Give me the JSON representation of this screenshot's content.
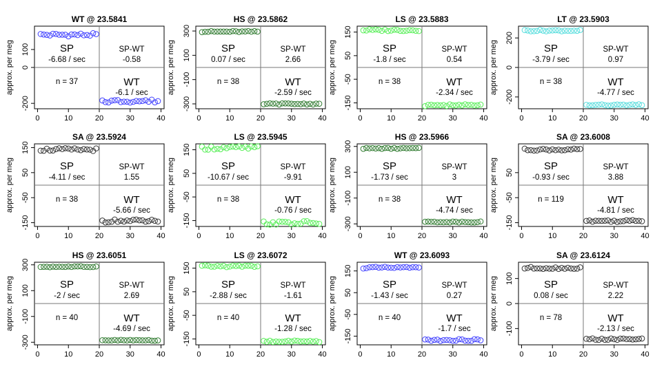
{
  "chart_data": [
    {
      "type": "scatter",
      "title": "WT @ 23.5841",
      "ylabel": "approx. per meg",
      "ylim": [
        -230,
        230
      ],
      "yticks": [
        -200,
        0,
        100
      ],
      "xlim": [
        -1,
        41
      ],
      "xticks": [
        0,
        10,
        20,
        30,
        40
      ],
      "color": "#4040ff",
      "level_sp": 182,
      "level_wt": -187,
      "noise": 9,
      "sp_rate": "-6.68 / sec",
      "spwt_label": "SP-WT",
      "spwt_value": "-0.58",
      "wt_rate": "-6.1 / sec",
      "n_label": "n = 37",
      "sp_label": "SP",
      "wt_label": "WT"
    },
    {
      "type": "scatter",
      "title": "HS @ 23.5862",
      "ylabel": "approx. per meg",
      "ylim": [
        -340,
        340
      ],
      "yticks": [
        -300,
        -100,
        100,
        300
      ],
      "xlim": [
        -1,
        41
      ],
      "xticks": [
        0,
        10,
        20,
        30,
        40
      ],
      "color": "#2f7a2f",
      "level_sp": 295,
      "level_wt": -300,
      "noise": 5,
      "sp_rate": "0.07 / sec",
      "spwt_label": "SP-WT",
      "spwt_value": "2.66",
      "wt_rate": "-2.59 / sec",
      "n_label": "n = 38",
      "sp_label": "SP",
      "wt_label": "WT"
    },
    {
      "type": "scatter",
      "title": "LS @ 23.5883",
      "ylabel": "approx. per meg",
      "ylim": [
        -175,
        175
      ],
      "yticks": [
        -150,
        -50,
        50,
        150
      ],
      "xlim": [
        -1,
        41
      ],
      "xticks": [
        0,
        10,
        20,
        30,
        40
      ],
      "color": "#55ee55",
      "level_sp": 158,
      "level_wt": -160,
      "noise": 4,
      "sp_rate": "-1.8 / sec",
      "spwt_label": "SP-WT",
      "spwt_value": "0.54",
      "wt_rate": "-2.34 / sec",
      "n_label": "n = 38",
      "sp_label": "SP",
      "wt_label": "WT"
    },
    {
      "type": "scatter",
      "title": "LT @ 23.5903",
      "ylabel": "approx. per meg",
      "ylim": [
        -280,
        280
      ],
      "yticks": [
        -200,
        0,
        200
      ],
      "xlim": [
        -1,
        41
      ],
      "xticks": [
        0,
        10,
        20,
        30,
        40
      ],
      "color": "#55dddd",
      "level_sp": 250,
      "level_wt": -255,
      "noise": 5,
      "sp_rate": "-3.79 / sec",
      "spwt_label": "SP-WT",
      "spwt_value": "0.97",
      "wt_rate": "-4.77 / sec",
      "n_label": "n = 38",
      "sp_label": "SP",
      "wt_label": "WT"
    },
    {
      "type": "scatter",
      "title": "SA @ 23.5924",
      "ylabel": "approx. per meg",
      "ylim": [
        -165,
        165
      ],
      "yticks": [
        -150,
        -50,
        50,
        150
      ],
      "xlim": [
        -1,
        41
      ],
      "xticks": [
        0,
        10,
        20,
        30,
        40
      ],
      "color": "#333333",
      "level_sp": 142,
      "level_wt": -143,
      "noise": 6,
      "sp_rate": "-4.11 / sec",
      "spwt_label": "SP-WT",
      "spwt_value": "1.55",
      "wt_rate": "-5.66 / sec",
      "n_label": "n = 38",
      "sp_label": "SP",
      "wt_label": "WT"
    },
    {
      "type": "scatter",
      "title": "LS @ 23.5945",
      "ylabel": "approx. per meg",
      "ylim": [
        -175,
        175
      ],
      "yticks": [
        -150,
        -50,
        50,
        150
      ],
      "xlim": [
        -1,
        41
      ],
      "xticks": [
        0,
        10,
        20,
        30,
        40
      ],
      "color": "#55ee55",
      "level_sp": 158,
      "level_wt": -160,
      "noise": 8,
      "sp_rate": "-10.67 / sec",
      "spwt_label": "SP-WT",
      "spwt_value": "-9.91",
      "wt_rate": "-0.76 / sec",
      "n_label": "n = 38",
      "sp_label": "SP",
      "wt_label": "WT"
    },
    {
      "type": "scatter",
      "title": "HS @ 23.5966",
      "ylabel": "approx. per meg",
      "ylim": [
        -320,
        320
      ],
      "yticks": [
        -300,
        -100,
        100,
        300
      ],
      "xlim": [
        -1,
        41
      ],
      "xticks": [
        0,
        10,
        20,
        30,
        40
      ],
      "color": "#2f7a2f",
      "level_sp": 285,
      "level_wt": -285,
      "noise": 4,
      "sp_rate": "-1.73 / sec",
      "spwt_label": "SP-WT",
      "spwt_value": "3",
      "wt_rate": "-4.74 / sec",
      "n_label": "n = 38",
      "sp_label": "SP",
      "wt_label": "WT"
    },
    {
      "type": "scatter",
      "title": "SA @ 23.6008",
      "ylabel": "approx. per meg",
      "ylim": [
        -165,
        165
      ],
      "yticks": [
        -150,
        -50,
        50
      ],
      "xlim": [
        -1,
        41
      ],
      "xticks": [
        0,
        10,
        20,
        30,
        40
      ],
      "color": "#333333",
      "level_sp": 142,
      "level_wt": -143,
      "noise": 4,
      "sp_rate": "-0.93 / sec",
      "spwt_label": "SP-WT",
      "spwt_value": "3.88",
      "wt_rate": "-4.81 / sec",
      "n_label": "n = 119",
      "sp_label": "SP",
      "wt_label": "WT"
    },
    {
      "type": "scatter",
      "title": "HS @ 23.6051",
      "ylabel": "approx. per meg",
      "ylim": [
        -320,
        320
      ],
      "yticks": [
        -300,
        -100,
        100,
        300
      ],
      "xlim": [
        -1,
        41
      ],
      "xticks": [
        0,
        10,
        20,
        30,
        40
      ],
      "color": "#2f7a2f",
      "level_sp": 285,
      "level_wt": -285,
      "noise": 4,
      "sp_rate": "-2 / sec",
      "spwt_label": "SP-WT",
      "spwt_value": "2.69",
      "wt_rate": "-4.69 / sec",
      "n_label": "n = 40",
      "sp_label": "SP",
      "wt_label": "WT"
    },
    {
      "type": "scatter",
      "title": "LS @ 23.6072",
      "ylabel": "approx. per meg",
      "ylim": [
        -175,
        175
      ],
      "yticks": [
        -150,
        -50,
        50,
        150
      ],
      "xlim": [
        -1,
        41
      ],
      "xticks": [
        0,
        10,
        20,
        30,
        40
      ],
      "color": "#55ee55",
      "level_sp": 158,
      "level_wt": -160,
      "noise": 4,
      "sp_rate": "-2.88 / sec",
      "spwt_label": "SP-WT",
      "spwt_value": "-1.61",
      "wt_rate": "-1.28 / sec",
      "n_label": "n = 40",
      "sp_label": "SP",
      "wt_label": "WT"
    },
    {
      "type": "scatter",
      "title": "WT @ 23.6093",
      "ylabel": "approx. per meg",
      "ylim": [
        -190,
        190
      ],
      "yticks": [
        -150,
        -50,
        50,
        150
      ],
      "xlim": [
        -1,
        41
      ],
      "xticks": [
        0,
        10,
        20,
        30,
        40
      ],
      "color": "#4040ff",
      "level_sp": 165,
      "level_wt": -168,
      "noise": 4,
      "sp_rate": "-1.43 / sec",
      "spwt_label": "SP-WT",
      "spwt_value": "0.27",
      "wt_rate": "-1.7 / sec",
      "n_label": "n = 40",
      "sp_label": "SP",
      "wt_label": "WT"
    },
    {
      "type": "scatter",
      "title": "SA @ 23.6124",
      "ylabel": "approx. per meg",
      "ylim": [
        -165,
        165
      ],
      "yticks": [
        -100,
        0,
        100
      ],
      "xlim": [
        -1,
        41
      ],
      "xticks": [
        0,
        10,
        20,
        30,
        40
      ],
      "color": "#333333",
      "level_sp": 142,
      "level_wt": -143,
      "noise": 4,
      "sp_rate": "0.08 / sec",
      "spwt_label": "SP-WT",
      "spwt_value": "2.22",
      "wt_rate": "-2.13 / sec",
      "n_label": "n = 78",
      "sp_label": "SP",
      "wt_label": "WT"
    }
  ]
}
